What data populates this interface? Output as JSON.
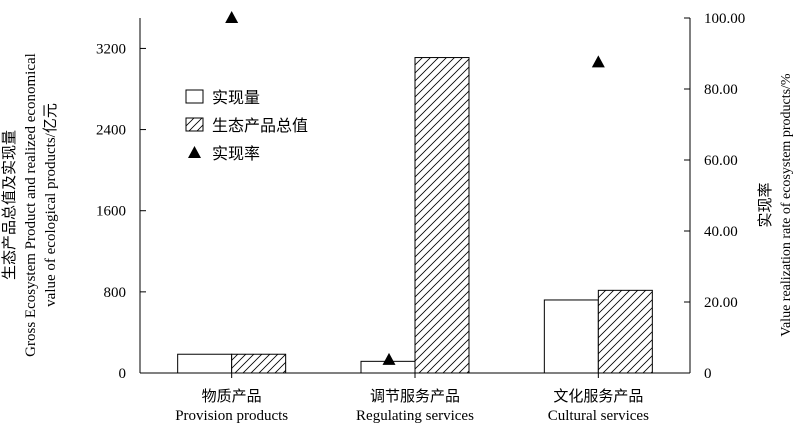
{
  "chart_data": {
    "type": "bar",
    "categories_zh": [
      "物质产品",
      "调节服务产品",
      "文化服务产品"
    ],
    "categories": [
      "Provision products",
      "Regulating services",
      "Cultural services"
    ],
    "series": [
      {
        "name": "实现量",
        "axis": "left",
        "values": [
          185,
          115,
          720
        ],
        "fill": "white"
      },
      {
        "name": "生态产品总值",
        "axis": "left",
        "values": [
          185,
          3110,
          815
        ],
        "fill": "hatch"
      },
      {
        "name": "实现率",
        "axis": "right",
        "kind": "scatter",
        "marker": "triangle",
        "values": [
          100.0,
          3.7,
          87.5
        ]
      }
    ],
    "left_axis": {
      "title_zh": "生态产品总值及实现量",
      "title_en_line1": "Gross Ecosystem Product and  realized economical",
      "title_en_line2": "value of ecological products/",
      "unit": "亿元",
      "ylim": [
        0,
        3500
      ],
      "ticks": [
        "0",
        "800",
        "1600",
        "2400",
        "3200"
      ]
    },
    "right_axis": {
      "title_zh": "实现率",
      "title_en": "Value realization rate of ecosystem products/%",
      "ylim": [
        0,
        100
      ],
      "ticks": [
        "0",
        "20.00",
        "40.00",
        "60.00",
        "80.00",
        "100.00"
      ]
    },
    "legend_position": "upper-left",
    "grid": false
  }
}
